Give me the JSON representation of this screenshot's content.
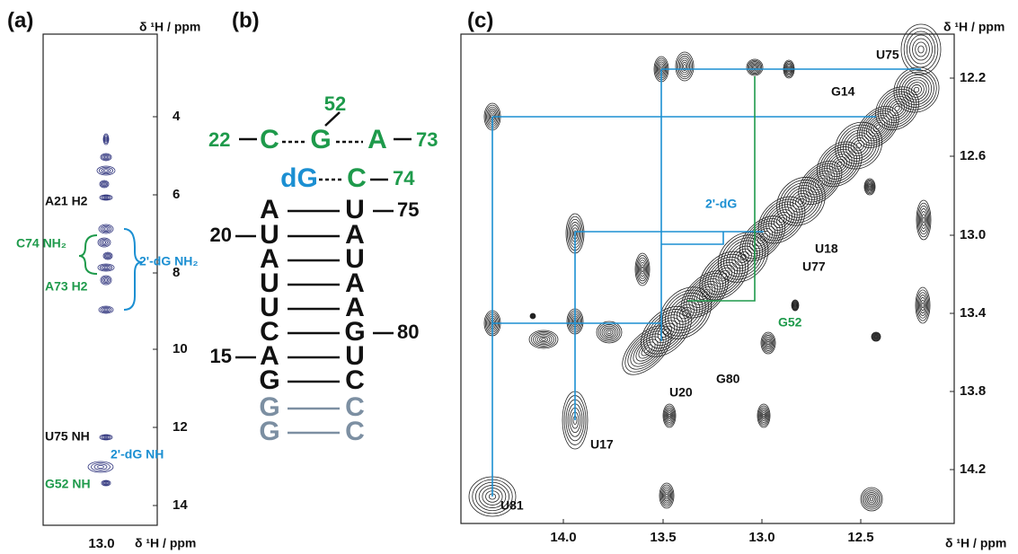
{
  "panel_a": {
    "label": "(a)",
    "axis_title_right": "δ ¹H / ppm",
    "axis_title_bottom": "δ ¹H / ppm",
    "y_ticks": [
      "4",
      "6",
      "8",
      "10",
      "12",
      "14"
    ],
    "x_ticks": [
      "13.0"
    ],
    "annotations": [
      "A21 H2",
      "C74 NH₂",
      "A73 H2",
      "2'-dG NH₂",
      "U75 NH",
      "2'-dG NH",
      "G52 NH"
    ]
  },
  "panel_b": {
    "label": "(b)",
    "top_row": {
      "left_number": "22",
      "letters": [
        "C",
        "G",
        "A"
      ],
      "right_number": "73",
      "top_number": "52"
    },
    "second_row": {
      "letters": [
        "dG",
        "C"
      ],
      "right_number": "74"
    },
    "pairs": [
      {
        "left": "A",
        "right": "U",
        "right_number": "75"
      },
      {
        "left": "U",
        "right": "A",
        "left_number": "20"
      },
      {
        "left": "A",
        "right": "U"
      },
      {
        "left": "U",
        "right": "A"
      },
      {
        "left": "U",
        "right": "A"
      },
      {
        "left": "C",
        "right": "G",
        "right_number": "80"
      },
      {
        "left": "A",
        "right": "U",
        "left_number": "15"
      },
      {
        "left": "G",
        "right": "C"
      },
      {
        "left": "G",
        "right": "C"
      },
      {
        "left": "G",
        "right": "C"
      }
    ]
  },
  "panel_c": {
    "label": "(c)",
    "axis_title_right": "δ ¹H / ppm",
    "axis_title_bottom": "δ ¹H / ppm",
    "y_ticks": [
      "12.2",
      "12.6",
      "13.0",
      "13.4",
      "13.8",
      "14.2"
    ],
    "x_ticks": [
      "14.0",
      "13.5",
      "13.0",
      "12.5"
    ],
    "annotations": [
      "U75",
      "G14",
      "2'-dG",
      "U18",
      "U77",
      "G52",
      "G80",
      "U20",
      "U17",
      "U81"
    ]
  }
}
